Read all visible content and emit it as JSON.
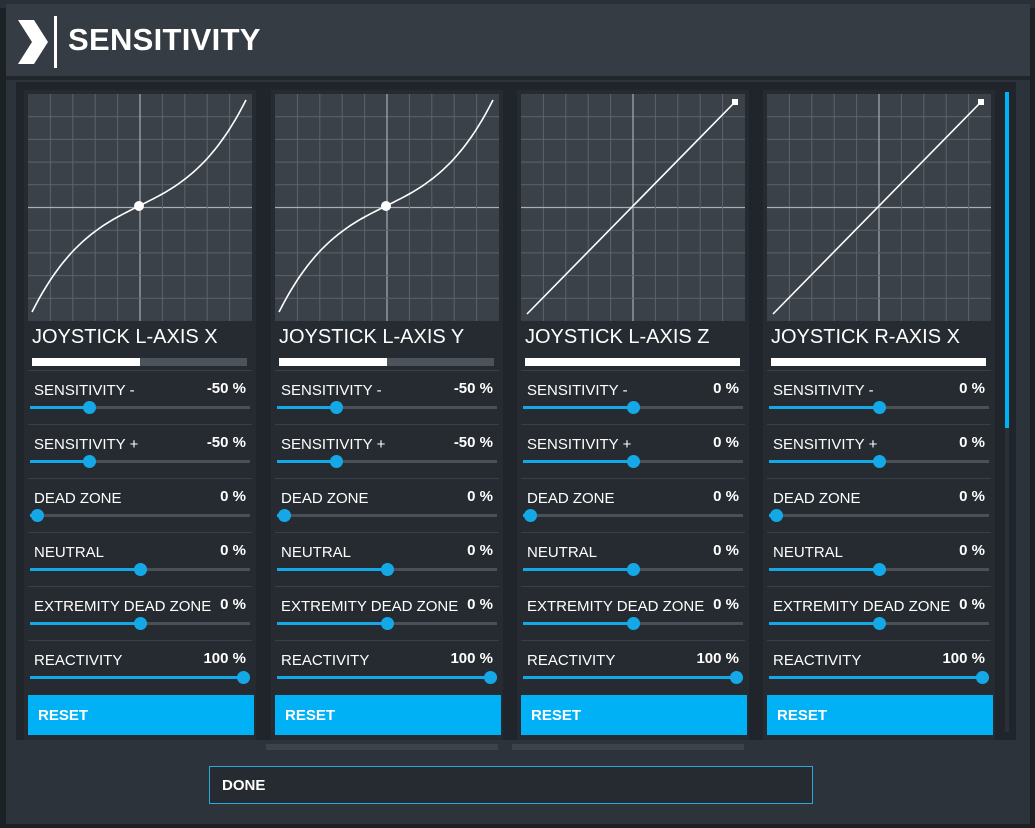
{
  "header": {
    "title": "SENSITIVITY",
    "logo_icon": "chevron-right-icon"
  },
  "colors": {
    "accent": "#00b1f5",
    "panel": "#262b31",
    "graph_bg": "#3b4148"
  },
  "panels": [
    {
      "name": "JOYSTICK L-AXIS X",
      "axis_bar_fraction": 0.5,
      "curve": "s-curve",
      "settings": [
        {
          "label": "SENSITIVITY -",
          "value": "-50 %",
          "fraction": 0.27
        },
        {
          "label": "SENSITIVITY +",
          "value": "-50 %",
          "fraction": 0.27
        },
        {
          "label": "DEAD ZONE",
          "value": "0 %",
          "fraction": 0.03
        },
        {
          "label": "NEUTRAL",
          "value": "0 %",
          "fraction": 0.5
        },
        {
          "label": "EXTREMITY DEAD ZONE",
          "value": "0 %",
          "fraction": 0.5
        },
        {
          "label": "REACTIVITY",
          "value": "100 %",
          "fraction": 0.97
        }
      ],
      "reset_label": "RESET"
    },
    {
      "name": "JOYSTICK L-AXIS Y",
      "axis_bar_fraction": 0.5,
      "curve": "s-curve",
      "settings": [
        {
          "label": "SENSITIVITY -",
          "value": "-50 %",
          "fraction": 0.27
        },
        {
          "label": "SENSITIVITY +",
          "value": "-50 %",
          "fraction": 0.27
        },
        {
          "label": "DEAD ZONE",
          "value": "0 %",
          "fraction": 0.03
        },
        {
          "label": "NEUTRAL",
          "value": "0 %",
          "fraction": 0.5
        },
        {
          "label": "EXTREMITY DEAD ZONE",
          "value": "0 %",
          "fraction": 0.5
        },
        {
          "label": "REACTIVITY",
          "value": "100 %",
          "fraction": 0.97
        }
      ],
      "reset_label": "RESET"
    },
    {
      "name": "JOYSTICK L-AXIS Z",
      "axis_bar_fraction": 1.0,
      "curve": "linear",
      "settings": [
        {
          "label": "SENSITIVITY -",
          "value": "0 %",
          "fraction": 0.5
        },
        {
          "label": "SENSITIVITY +",
          "value": "0 %",
          "fraction": 0.5
        },
        {
          "label": "DEAD ZONE",
          "value": "0 %",
          "fraction": 0.03
        },
        {
          "label": "NEUTRAL",
          "value": "0 %",
          "fraction": 0.5
        },
        {
          "label": "EXTREMITY DEAD ZONE",
          "value": "0 %",
          "fraction": 0.5
        },
        {
          "label": "REACTIVITY",
          "value": "100 %",
          "fraction": 0.97
        }
      ],
      "reset_label": "RESET"
    },
    {
      "name": "JOYSTICK R-AXIS X",
      "axis_bar_fraction": 1.0,
      "curve": "linear",
      "settings": [
        {
          "label": "SENSITIVITY -",
          "value": "0 %",
          "fraction": 0.5
        },
        {
          "label": "SENSITIVITY +",
          "value": "0 %",
          "fraction": 0.5
        },
        {
          "label": "DEAD ZONE",
          "value": "0 %",
          "fraction": 0.03
        },
        {
          "label": "NEUTRAL",
          "value": "0 %",
          "fraction": 0.5
        },
        {
          "label": "EXTREMITY DEAD ZONE",
          "value": "0 %",
          "fraction": 0.5
        },
        {
          "label": "REACTIVITY",
          "value": "100 %",
          "fraction": 0.97
        }
      ],
      "reset_label": "RESET"
    }
  ],
  "footer": {
    "done_label": "DONE"
  }
}
